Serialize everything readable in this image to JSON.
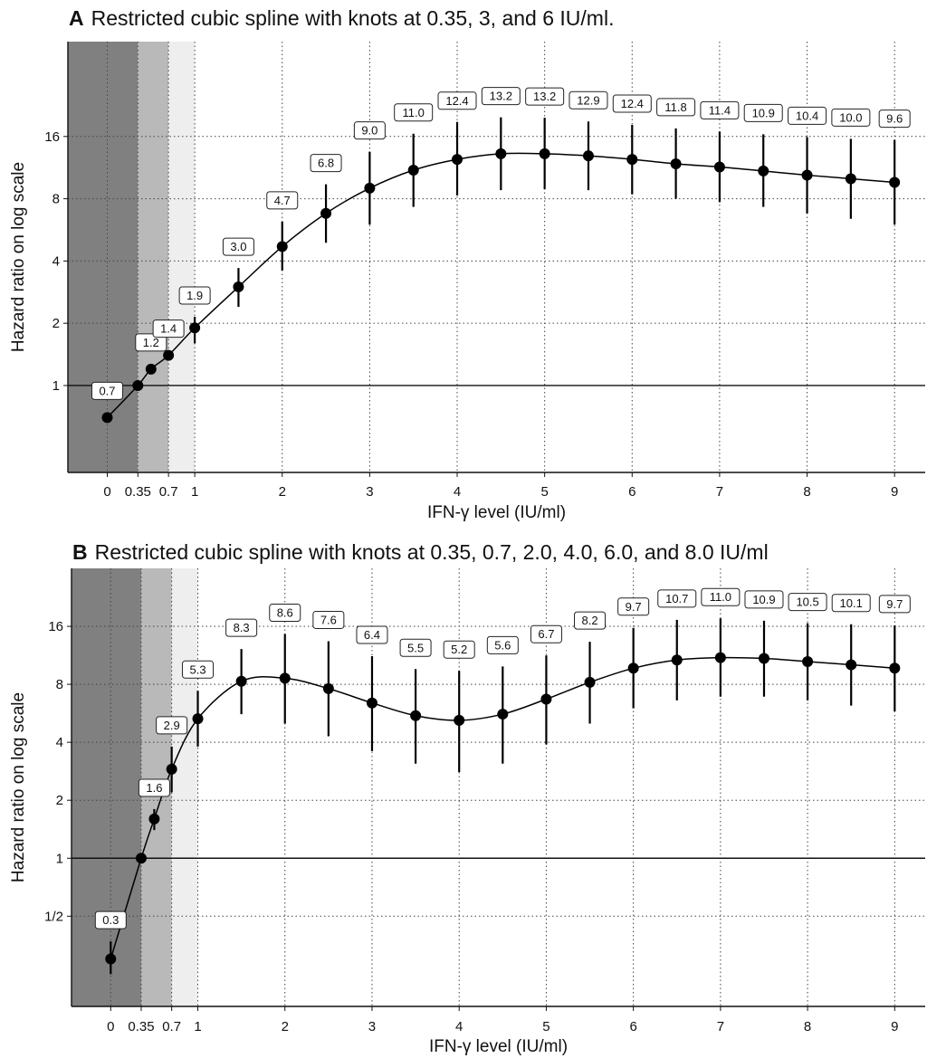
{
  "chart_data": [
    {
      "type": "line",
      "panel_letter": "A",
      "title": "Restricted cubic spline with knots at 0.35, 3, and 6 IU/ml.",
      "xlabel": "IFN-γ level (IU/ml)",
      "ylabel": "Hazard ratio on log scale",
      "y_scale": "log2",
      "xlim": [
        -0.45,
        9.35
      ],
      "ylim": [
        0.38,
        46
      ],
      "grid": true,
      "reference_line_y": 1,
      "x_ticks": [
        {
          "value": 0,
          "label": "0"
        },
        {
          "value": 0.35,
          "label": "0.35"
        },
        {
          "value": 0.7,
          "label": "0.7"
        },
        {
          "value": 1,
          "label": "1"
        },
        {
          "value": 2,
          "label": "2"
        },
        {
          "value": 3,
          "label": "3"
        },
        {
          "value": 4,
          "label": "4"
        },
        {
          "value": 5,
          "label": "5"
        },
        {
          "value": 6,
          "label": "6"
        },
        {
          "value": 7,
          "label": "7"
        },
        {
          "value": 8,
          "label": "8"
        },
        {
          "value": 9,
          "label": "9"
        }
      ],
      "y_ticks": [
        {
          "value": 1,
          "label": "1"
        },
        {
          "value": 2,
          "label": "2"
        },
        {
          "value": 4,
          "label": "4"
        },
        {
          "value": 8,
          "label": "8"
        },
        {
          "value": 16,
          "label": "16"
        }
      ],
      "shaded_bands": [
        {
          "from": -0.45,
          "to": 0.35,
          "color": "#808080"
        },
        {
          "from": 0.35,
          "to": 0.7,
          "color": "#b9b9b9"
        },
        {
          "from": 0.7,
          "to": 1,
          "color": "#eeeeee"
        }
      ],
      "points": [
        {
          "x": 0,
          "y": 0.7,
          "lo": 0.7,
          "hi": 0.7,
          "label": "0.7"
        },
        {
          "x": 0.35,
          "y": 1,
          "lo": 1,
          "hi": 1,
          "label": ""
        },
        {
          "x": 0.5,
          "y": 1.2,
          "lo": 1.2,
          "hi": 1.2,
          "label": "1.2"
        },
        {
          "x": 0.7,
          "y": 1.4,
          "lo": 1.4,
          "hi": 1.4,
          "label": "1.4"
        },
        {
          "x": 1,
          "y": 1.9,
          "lo": 1.6,
          "hi": 2.15,
          "label": "1.9"
        },
        {
          "x": 1.5,
          "y": 3.0,
          "lo": 2.4,
          "hi": 3.7,
          "label": "3.0"
        },
        {
          "x": 2,
          "y": 4.7,
          "lo": 3.6,
          "hi": 6.2,
          "label": "4.7"
        },
        {
          "x": 2.5,
          "y": 6.8,
          "lo": 4.9,
          "hi": 9.4,
          "label": "6.8"
        },
        {
          "x": 3,
          "y": 9.0,
          "lo": 6.0,
          "hi": 13.5,
          "label": "9.0"
        },
        {
          "x": 3.5,
          "y": 11.0,
          "lo": 7.3,
          "hi": 16.5,
          "label": "11.0"
        },
        {
          "x": 4,
          "y": 12.4,
          "lo": 8.3,
          "hi": 18.8,
          "label": "12.4"
        },
        {
          "x": 4.5,
          "y": 13.2,
          "lo": 8.8,
          "hi": 19.8,
          "label": "13.2"
        },
        {
          "x": 5,
          "y": 13.2,
          "lo": 8.9,
          "hi": 19.7,
          "label": "13.2"
        },
        {
          "x": 5.5,
          "y": 12.9,
          "lo": 8.8,
          "hi": 18.9,
          "label": "12.9"
        },
        {
          "x": 6,
          "y": 12.4,
          "lo": 8.4,
          "hi": 18.2,
          "label": "12.4"
        },
        {
          "x": 6.5,
          "y": 11.8,
          "lo": 8.0,
          "hi": 17.5,
          "label": "11.8"
        },
        {
          "x": 7,
          "y": 11.4,
          "lo": 7.7,
          "hi": 16.9,
          "label": "11.4"
        },
        {
          "x": 7.5,
          "y": 10.9,
          "lo": 7.3,
          "hi": 16.4,
          "label": "10.9"
        },
        {
          "x": 8,
          "y": 10.4,
          "lo": 6.8,
          "hi": 15.9,
          "label": "10.4"
        },
        {
          "x": 8.5,
          "y": 10.0,
          "lo": 6.4,
          "hi": 15.6,
          "label": "10.0"
        },
        {
          "x": 9,
          "y": 9.6,
          "lo": 6.0,
          "hi": 15.4,
          "label": "9.6"
        }
      ]
    },
    {
      "type": "line",
      "panel_letter": "B",
      "title": "Restricted cubic spline with knots at 0.35, 0.7, 2.0, 4.0, 6.0, and 8.0 IU/ml",
      "xlabel": "IFN-γ level (IU/ml)",
      "ylabel": "Hazard ratio on log scale",
      "y_scale": "log2",
      "xlim": [
        -0.45,
        9.35
      ],
      "ylim": [
        0.17,
        32
      ],
      "grid": true,
      "reference_line_y": 1,
      "x_ticks": [
        {
          "value": 0,
          "label": "0"
        },
        {
          "value": 0.35,
          "label": "0.35"
        },
        {
          "value": 0.7,
          "label": "0.7"
        },
        {
          "value": 1,
          "label": "1"
        },
        {
          "value": 2,
          "label": "2"
        },
        {
          "value": 3,
          "label": "3"
        },
        {
          "value": 4,
          "label": "4"
        },
        {
          "value": 5,
          "label": "5"
        },
        {
          "value": 6,
          "label": "6"
        },
        {
          "value": 7,
          "label": "7"
        },
        {
          "value": 8,
          "label": "8"
        },
        {
          "value": 9,
          "label": "9"
        }
      ],
      "y_ticks": [
        {
          "value": 0.5,
          "label": "1/2"
        },
        {
          "value": 1,
          "label": "1"
        },
        {
          "value": 2,
          "label": "2"
        },
        {
          "value": 4,
          "label": "4"
        },
        {
          "value": 8,
          "label": "8"
        },
        {
          "value": 16,
          "label": "16"
        }
      ],
      "shaded_bands": [
        {
          "from": -0.45,
          "to": 0.35,
          "color": "#808080"
        },
        {
          "from": 0.35,
          "to": 0.7,
          "color": "#b9b9b9"
        },
        {
          "from": 0.7,
          "to": 1,
          "color": "#eeeeee"
        }
      ],
      "points": [
        {
          "x": 0,
          "y": 0.3,
          "lo": 0.25,
          "hi": 0.37,
          "label": "0.3"
        },
        {
          "x": 0.35,
          "y": 1,
          "lo": 1,
          "hi": 1,
          "label": ""
        },
        {
          "x": 0.5,
          "y": 1.6,
          "lo": 1.4,
          "hi": 1.8,
          "label": "1.6"
        },
        {
          "x": 0.7,
          "y": 2.9,
          "lo": 2.2,
          "hi": 3.8,
          "label": "2.9"
        },
        {
          "x": 1,
          "y": 5.3,
          "lo": 3.8,
          "hi": 7.4,
          "label": "5.3"
        },
        {
          "x": 1.5,
          "y": 8.3,
          "lo": 5.6,
          "hi": 12.2,
          "label": "8.3"
        },
        {
          "x": 2,
          "y": 8.6,
          "lo": 5.0,
          "hi": 14.6,
          "label": "8.6"
        },
        {
          "x": 2.5,
          "y": 7.6,
          "lo": 4.3,
          "hi": 13.4,
          "label": "7.6"
        },
        {
          "x": 3,
          "y": 6.4,
          "lo": 3.6,
          "hi": 11.2,
          "label": "6.4"
        },
        {
          "x": 3.5,
          "y": 5.5,
          "lo": 3.1,
          "hi": 9.6,
          "label": "5.5"
        },
        {
          "x": 4,
          "y": 5.2,
          "lo": 2.8,
          "hi": 9.4,
          "label": "5.2"
        },
        {
          "x": 4.5,
          "y": 5.6,
          "lo": 3.1,
          "hi": 9.9,
          "label": "5.6"
        },
        {
          "x": 5,
          "y": 6.7,
          "lo": 3.9,
          "hi": 11.3,
          "label": "6.7"
        },
        {
          "x": 5.5,
          "y": 8.2,
          "lo": 5.0,
          "hi": 13.3,
          "label": "8.2"
        },
        {
          "x": 6,
          "y": 9.7,
          "lo": 6.0,
          "hi": 15.7,
          "label": "9.7"
        },
        {
          "x": 6.5,
          "y": 10.7,
          "lo": 6.6,
          "hi": 17.3,
          "label": "10.7"
        },
        {
          "x": 7,
          "y": 11.0,
          "lo": 6.9,
          "hi": 17.6,
          "label": "11.0"
        },
        {
          "x": 7.5,
          "y": 10.9,
          "lo": 6.9,
          "hi": 17.1,
          "label": "10.9"
        },
        {
          "x": 8,
          "y": 10.5,
          "lo": 6.6,
          "hi": 16.6,
          "label": "10.5"
        },
        {
          "x": 8.5,
          "y": 10.1,
          "lo": 6.2,
          "hi": 16.4,
          "label": "10.1"
        },
        {
          "x": 9,
          "y": 9.7,
          "lo": 5.8,
          "hi": 16.2,
          "label": "9.7"
        }
      ]
    }
  ]
}
